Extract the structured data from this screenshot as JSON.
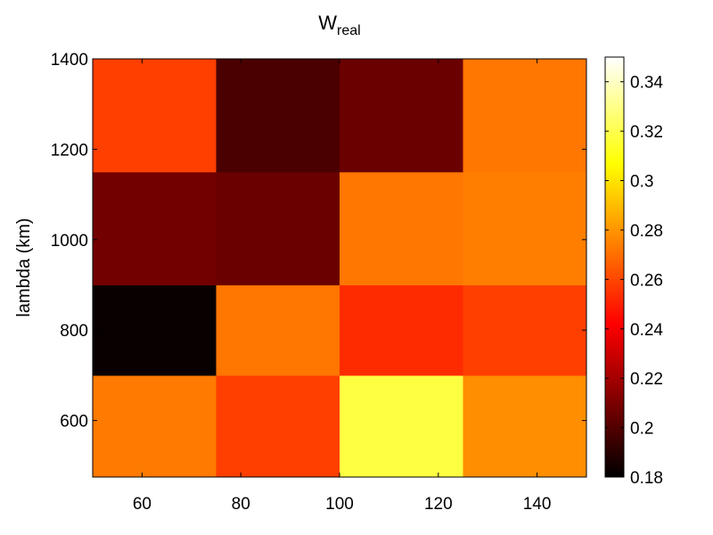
{
  "chart_data": {
    "type": "heatmap",
    "title": "W",
    "title_subscript": "real",
    "ylabel": "lambda (km)",
    "xlabel": "",
    "x_centers": [
      60,
      90,
      115,
      140
    ],
    "x_edges": [
      50,
      75,
      100,
      125,
      150
    ],
    "y_edges": [
      475,
      700,
      900,
      1150,
      1400
    ],
    "xlim": [
      50,
      150
    ],
    "ylim": [
      475,
      1400
    ],
    "x_ticks": [
      60,
      80,
      100,
      120,
      140
    ],
    "y_ticks": [
      600,
      800,
      1000,
      1200,
      1400
    ],
    "values": [
      [
        0.273,
        0.258,
        0.318,
        0.278
      ],
      [
        0.182,
        0.272,
        0.253,
        0.258
      ],
      [
        0.208,
        0.206,
        0.272,
        0.274
      ],
      [
        0.258,
        0.198,
        0.206,
        0.272
      ]
    ],
    "colormap": "hot",
    "clim": [
      0.18,
      0.35
    ],
    "colorbar": {
      "ticks": [
        0.18,
        0.2,
        0.22,
        0.24,
        0.26,
        0.28,
        0.3,
        0.32,
        0.34
      ],
      "tick_labels": [
        "0.18",
        "0.2",
        "0.22",
        "0.24",
        "0.26",
        "0.28",
        "0.3",
        "0.32",
        "0.34"
      ],
      "placement": "right"
    },
    "grid": false
  }
}
